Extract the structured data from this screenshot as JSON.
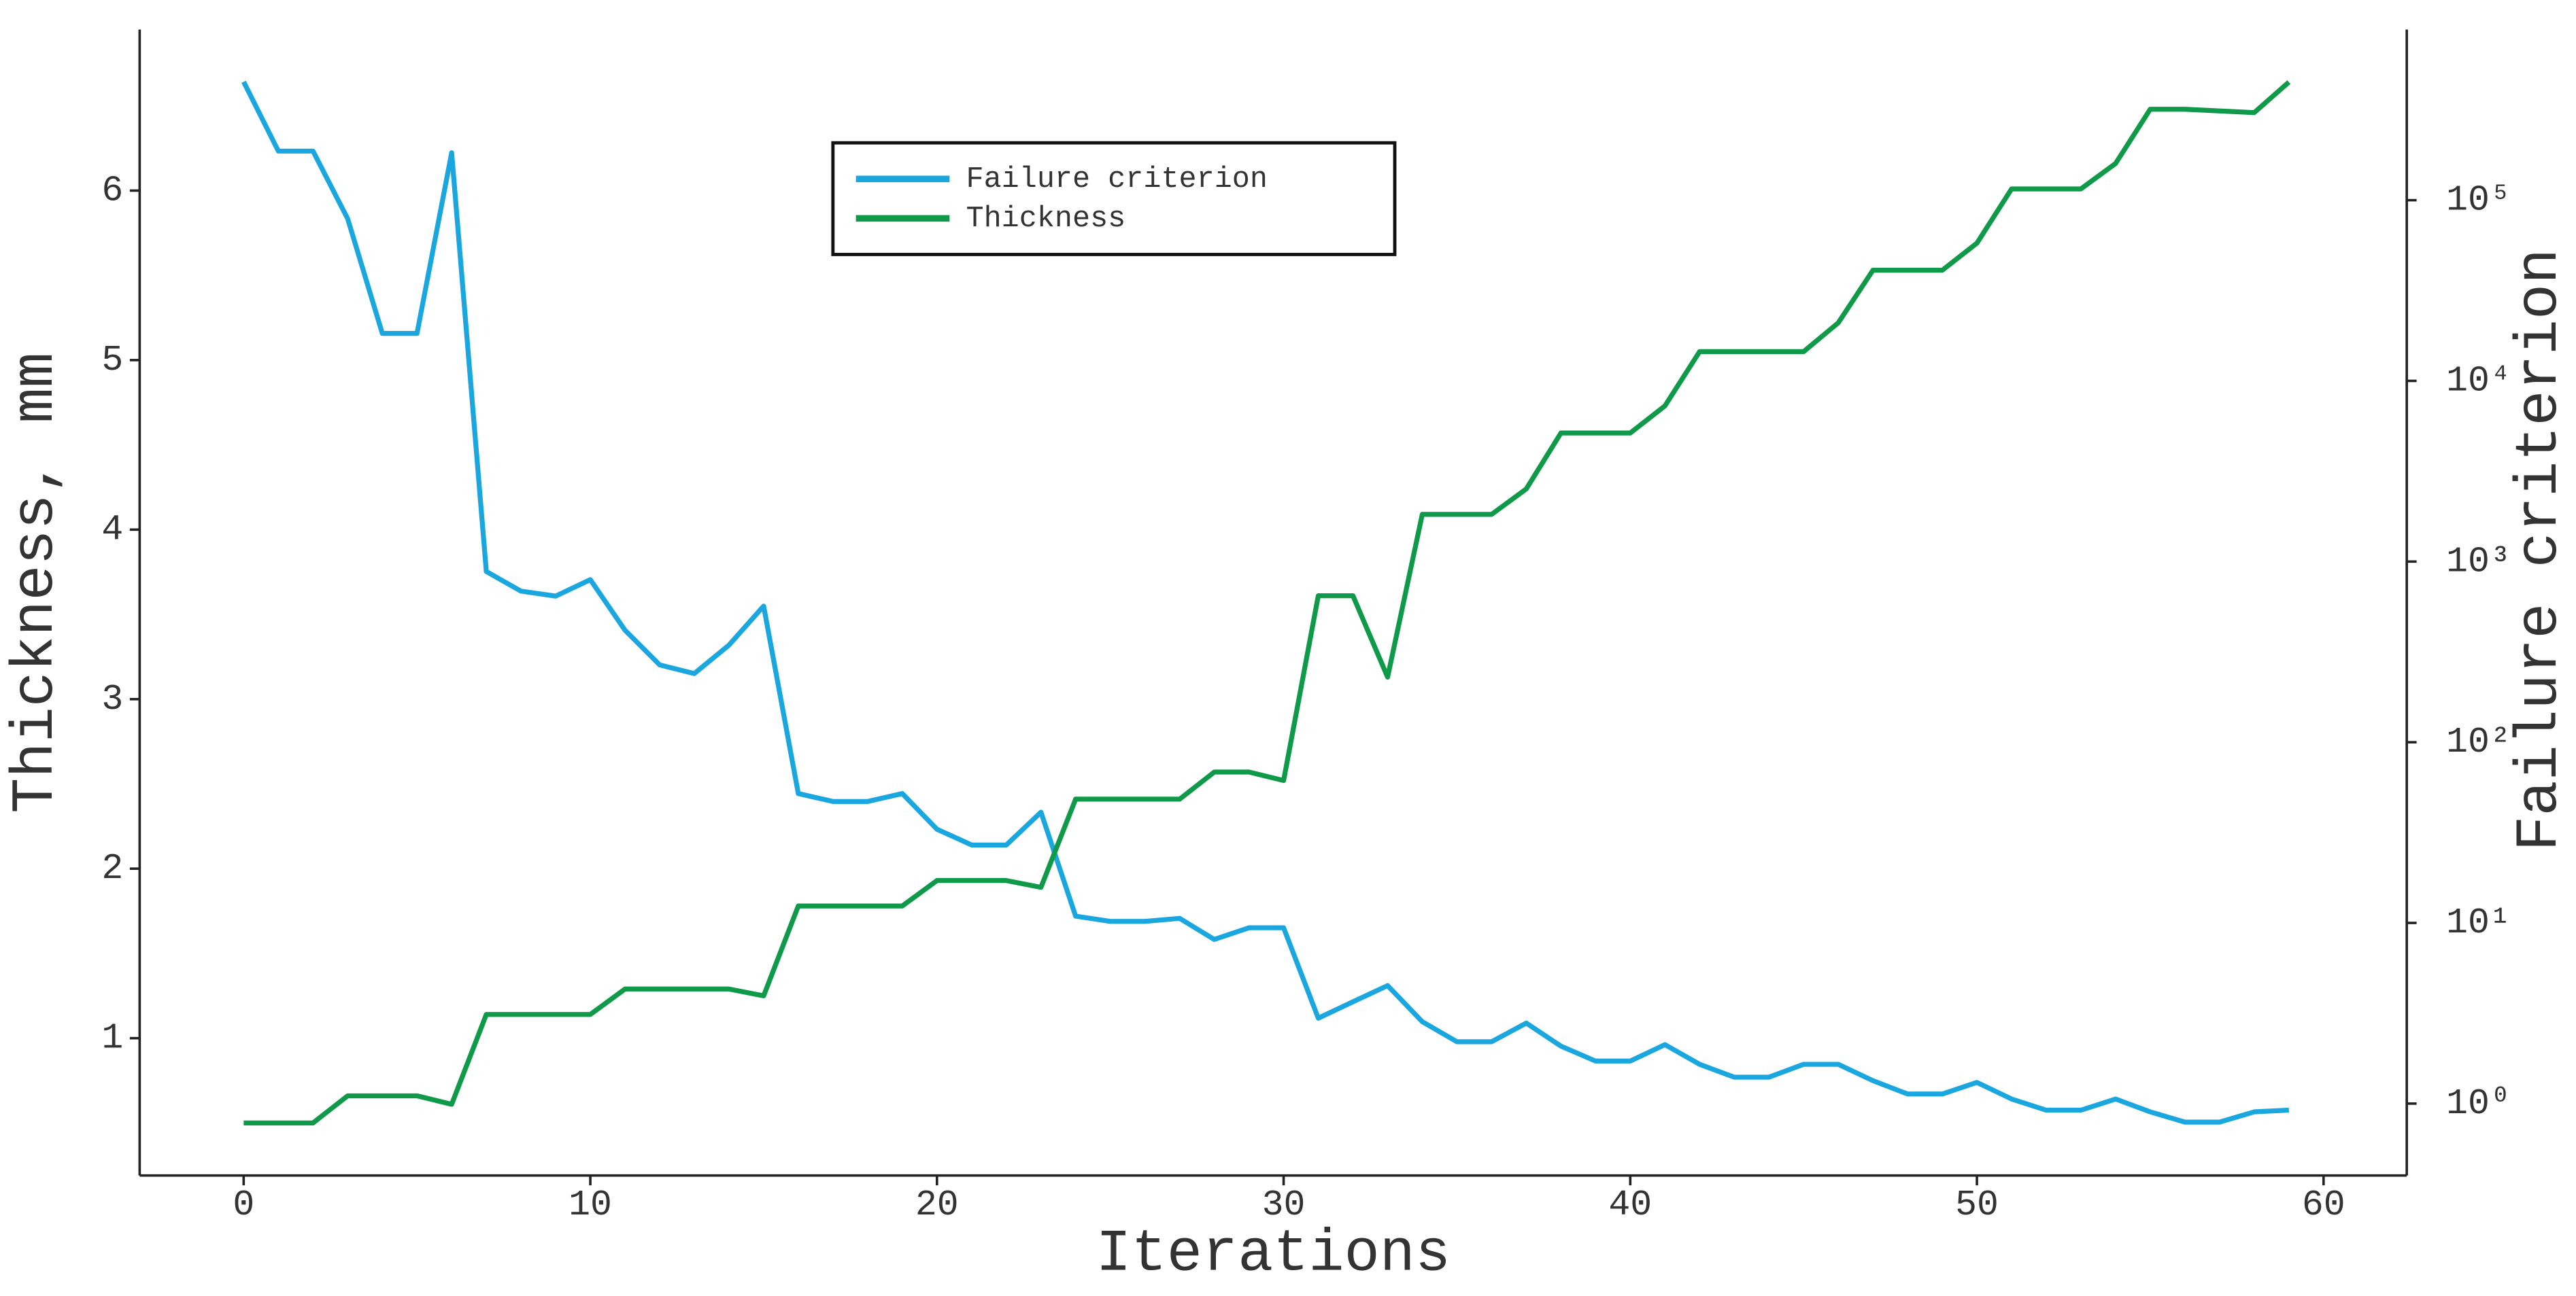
{
  "chart_data": {
    "type": "line",
    "x_label": "Iterations",
    "y_label": "Thickness, mm",
    "y2_label": "Failure criterion",
    "x": [
      0,
      1,
      2,
      3,
      4,
      5,
      6,
      7,
      8,
      9,
      10,
      11,
      12,
      13,
      14,
      15,
      16,
      17,
      18,
      19,
      20,
      21,
      22,
      23,
      24,
      25,
      26,
      27,
      28,
      29,
      30,
      31,
      32,
      33,
      34,
      35,
      36,
      37,
      38,
      39,
      40,
      41,
      42,
      43,
      44,
      45,
      46,
      47,
      48,
      49,
      50,
      51,
      52,
      53,
      54,
      55,
      56,
      57,
      58,
      59
    ],
    "series": [
      {
        "name": "Failure criterion",
        "color": "#1aa7e0",
        "axis": "y2",
        "values": [
          452000,
          187000,
          187000,
          79000,
          18300,
          18300,
          183000,
          881,
          686,
          644,
          794,
          417,
          268,
          240,
          345,
          567,
          52,
          47,
          47,
          52,
          33,
          27,
          27,
          41,
          10.9,
          10.2,
          10.2,
          10.6,
          8.1,
          9.4,
          9.4,
          2.97,
          3.66,
          4.5,
          2.84,
          2.2,
          2.2,
          2.79,
          2.08,
          1.72,
          1.72,
          2.12,
          1.65,
          1.4,
          1.4,
          1.65,
          1.65,
          1.34,
          1.13,
          1.13,
          1.31,
          1.06,
          0.92,
          0.92,
          1.06,
          0.9,
          0.79,
          0.79,
          0.9,
          0.92
        ]
      },
      {
        "name": "Thickness",
        "color": "#0e9a48",
        "values": [
          0.5,
          0.5,
          0.5,
          0.66,
          0.66,
          0.66,
          0.61,
          1.14,
          1.14,
          1.14,
          1.14,
          1.29,
          1.29,
          1.29,
          1.29,
          1.25,
          1.78,
          1.78,
          1.78,
          1.78,
          1.93,
          1.93,
          1.93,
          1.89,
          2.41,
          2.41,
          2.41,
          2.41,
          2.57,
          2.57,
          2.52,
          3.61,
          3.61,
          3.13,
          4.09,
          4.09,
          4.09,
          4.24,
          4.57,
          4.57,
          4.57,
          4.73,
          5.05,
          5.05,
          5.05,
          5.05,
          5.22,
          5.53,
          5.53,
          5.53,
          5.69,
          6.01,
          6.01,
          6.01,
          6.16,
          6.48,
          6.48,
          6.47,
          6.46,
          6.64
        ]
      }
    ],
    "xlim": [
      -3,
      62.4
    ],
    "xticks": [
      0,
      10,
      20,
      30,
      40,
      50,
      60
    ],
    "ylim": [
      0.19,
      6.95
    ],
    "yticks": [
      1,
      2,
      3,
      4,
      5,
      6
    ],
    "y2lim": [
      0.4,
      880000
    ],
    "y2_log": true,
    "y2ticks": [
      {
        "value": 1,
        "label": "10⁰"
      },
      {
        "value": 10,
        "label": "10¹"
      },
      {
        "value": 100,
        "label": "10²"
      },
      {
        "value": 1000,
        "label": "10³"
      },
      {
        "value": 10000,
        "label": "10⁴"
      },
      {
        "value": 100000,
        "label": "10⁵"
      }
    ],
    "legend": "top"
  }
}
